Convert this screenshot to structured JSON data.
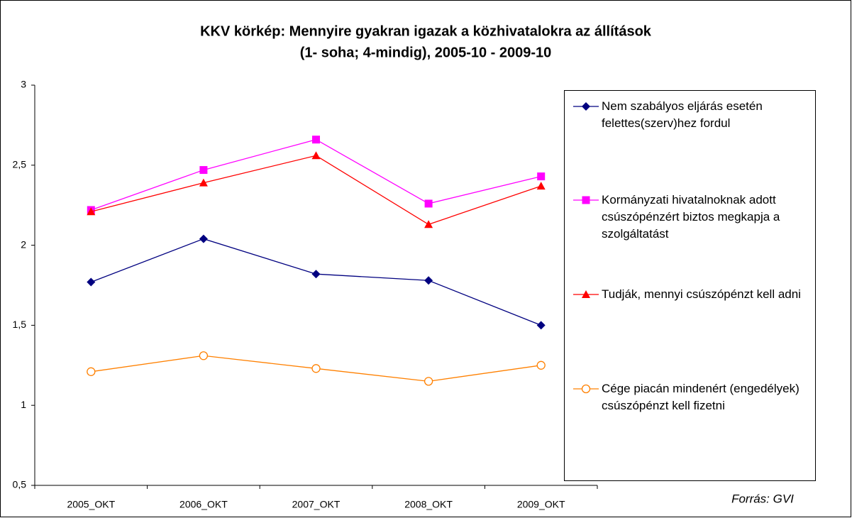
{
  "chart_data": {
    "type": "line",
    "title": [
      "KKV körkép: Mennyire gyakran igazak a közhivatalokra az állítások",
      "(1- soha; 4-mindig), 2005-10 - 2009-10"
    ],
    "categories": [
      "2005_OKT",
      "2006_OKT",
      "2007_OKT",
      "2008_OKT",
      "2009_OKT"
    ],
    "series": [
      {
        "name": "Nem szabályos eljárás esetén felettes(szerv)hez fordul",
        "color": "#000080",
        "marker": "diamond",
        "values": [
          1.77,
          2.04,
          1.82,
          1.78,
          1.5
        ]
      },
      {
        "name": "Kormányzati hivatalnoknak adott csúszópénzért biztos megkapja a szolgáltatást",
        "color": "#ff00ff",
        "marker": "square",
        "values": [
          2.22,
          2.47,
          2.66,
          2.26,
          2.43
        ]
      },
      {
        "name": "Tudják, mennyi csúszópénzt kell adni",
        "color": "#ff0000",
        "marker": "triangle",
        "values": [
          2.21,
          2.39,
          2.56,
          2.13,
          2.37
        ]
      },
      {
        "name": "Cége piacán mindenért (engedélyek) csúszópénzt kell fizetni",
        "color": "#ff8000",
        "marker": "circle",
        "values": [
          1.21,
          1.31,
          1.23,
          1.15,
          1.25
        ]
      }
    ],
    "ylim": [
      0.5,
      3
    ],
    "yticks": [
      {
        "value": 0.5,
        "label": "0,5"
      },
      1,
      {
        "value": 1.5,
        "label": "1,5"
      },
      2,
      {
        "value": 2.5,
        "label": "2,5"
      },
      3
    ],
    "legend": "right",
    "source": "Forrás: GVI"
  }
}
